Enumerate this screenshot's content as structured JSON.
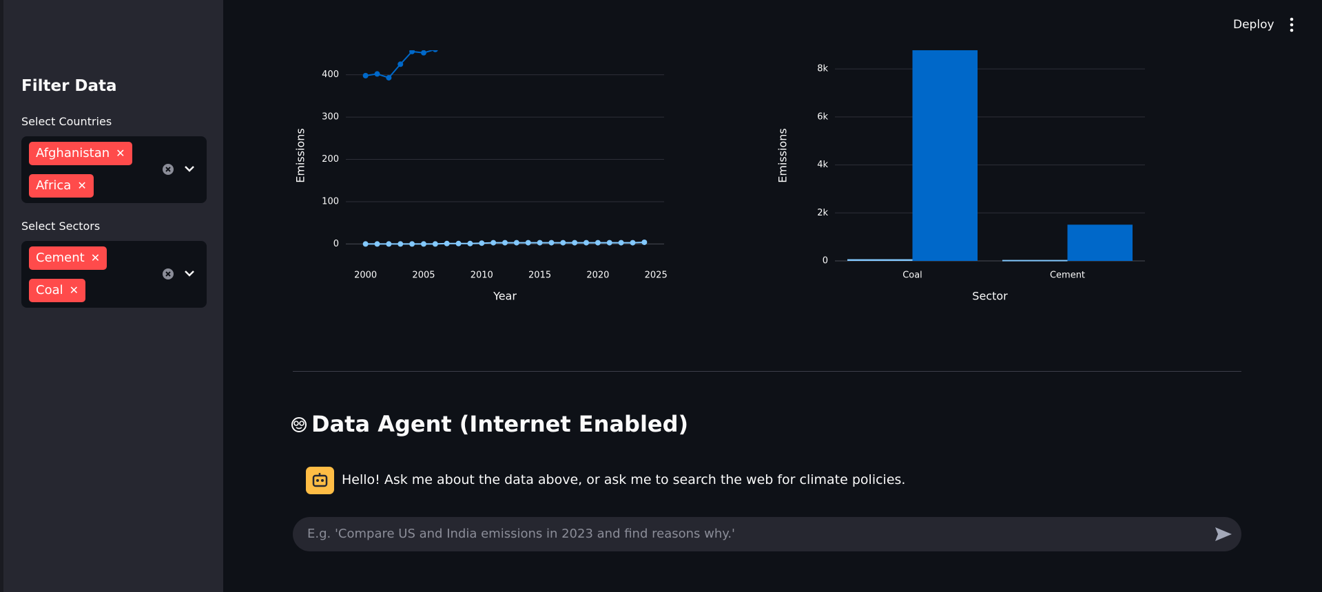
{
  "header": {
    "deploy": "Deploy"
  },
  "sidebar": {
    "title": "Filter Data",
    "filters": [
      {
        "label": "Select Countries",
        "selected": [
          "Afghanistan",
          "Africa"
        ]
      },
      {
        "label": "Select Sectors",
        "selected": [
          "Cement",
          "Coal"
        ]
      }
    ]
  },
  "chart_data": [
    {
      "type": "line",
      "x_label": "Year",
      "y_label": "Emissions",
      "x": [
        2000,
        2001,
        2002,
        2003,
        2004,
        2005,
        2006,
        2007,
        2008,
        2009,
        2010,
        2011,
        2012,
        2013,
        2014,
        2015,
        2016,
        2017,
        2018,
        2019,
        2020,
        2021,
        2022,
        2023,
        2024
      ],
      "series": [
        {
          "color": "#0068c9",
          "values": [
            398,
            402,
            393,
            425,
            455,
            452,
            460,
            null,
            null,
            null,
            null,
            null,
            null,
            null,
            null,
            null,
            null,
            null,
            null,
            null,
            null,
            null,
            null,
            null,
            null
          ]
        },
        {
          "color": "#83c9ff",
          "values": [
            0,
            0,
            0,
            0,
            0,
            0,
            0,
            1,
            1,
            1,
            2,
            3,
            3,
            3,
            3,
            3,
            3,
            3,
            3,
            3,
            3,
            3,
            3,
            3,
            4
          ]
        }
      ],
      "xlim": [
        1998.3,
        2025.7
      ],
      "xticks": [
        2000,
        2005,
        2010,
        2015,
        2020,
        2025
      ],
      "ylim": [
        -40,
        458
      ],
      "yticks": [
        0,
        100,
        200,
        300,
        400
      ],
      "grid": true
    },
    {
      "type": "bar",
      "x_label": "Sector",
      "y_label": "Emissions",
      "categories": [
        "Coal",
        "Cement"
      ],
      "series": [
        {
          "color": "#83c9ff",
          "values": [
            70,
            40
          ]
        },
        {
          "color": "#0068c9",
          "values": [
            8780,
            1510
          ]
        }
      ],
      "ylim": [
        0,
        8780
      ],
      "yticks": [
        0,
        {
          "value": 2000,
          "label": "2k"
        },
        {
          "value": 4000,
          "label": "4k"
        },
        {
          "value": 6000,
          "label": "6k"
        },
        {
          "value": 8000,
          "label": "8k"
        }
      ],
      "grid": true
    }
  ],
  "agent": {
    "title": "Data Agent (Internet Enabled)",
    "message": "Hello! Ask me about the data above, or ask me to search the web for climate policies.",
    "placeholder": "E.g. 'Compare US and India emissions in 2023 and find reasons why.'"
  }
}
